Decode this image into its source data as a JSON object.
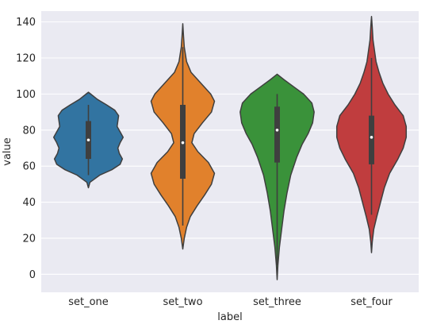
{
  "chart_data": {
    "type": "violin",
    "xlabel": "label",
    "ylabel": "value",
    "ylim": [
      -10,
      146
    ],
    "yticks": [
      0,
      20,
      40,
      60,
      80,
      100,
      120,
      140
    ],
    "categories": [
      "set_one",
      "set_two",
      "set_three",
      "set_four"
    ],
    "grid": true,
    "background": "#eaeaf2",
    "violins": [
      {
        "category": "set_one",
        "color": "#3274a1",
        "min": 55,
        "q1": 64,
        "median": 74.5,
        "q3": 85,
        "max": 94,
        "kde_min": 48,
        "kde_max": 101,
        "profile": [
          [
            48,
            0.0
          ],
          [
            51,
            0.04
          ],
          [
            55,
            0.3
          ],
          [
            58,
            0.62
          ],
          [
            61,
            0.84
          ],
          [
            64,
            0.9
          ],
          [
            67,
            0.82
          ],
          [
            70,
            0.78
          ],
          [
            73,
            0.84
          ],
          [
            76,
            0.92
          ],
          [
            79,
            0.84
          ],
          [
            82,
            0.76
          ],
          [
            85,
            0.78
          ],
          [
            88,
            0.8
          ],
          [
            91,
            0.7
          ],
          [
            94,
            0.48
          ],
          [
            97,
            0.24
          ],
          [
            100,
            0.06
          ],
          [
            101,
            0.0
          ]
        ]
      },
      {
        "category": "set_two",
        "color": "#e1812c",
        "min": 27,
        "q1": 53,
        "median": 73,
        "q3": 94,
        "max": 126,
        "kde_min": 14,
        "kde_max": 139,
        "profile": [
          [
            14,
            0.0
          ],
          [
            20,
            0.04
          ],
          [
            26,
            0.1
          ],
          [
            32,
            0.2
          ],
          [
            38,
            0.38
          ],
          [
            44,
            0.58
          ],
          [
            50,
            0.76
          ],
          [
            56,
            0.84
          ],
          [
            62,
            0.68
          ],
          [
            68,
            0.4
          ],
          [
            73,
            0.24
          ],
          [
            78,
            0.3
          ],
          [
            84,
            0.52
          ],
          [
            90,
            0.76
          ],
          [
            96,
            0.84
          ],
          [
            100,
            0.74
          ],
          [
            106,
            0.48
          ],
          [
            112,
            0.22
          ],
          [
            118,
            0.1
          ],
          [
            126,
            0.04
          ],
          [
            132,
            0.02
          ],
          [
            139,
            0.0
          ]
        ]
      },
      {
        "category": "set_three",
        "color": "#3a923a",
        "min": 5,
        "q1": 62,
        "median": 80,
        "q3": 93,
        "max": 100,
        "kde_min": -3,
        "kde_max": 111,
        "profile": [
          [
            -3,
            0.0
          ],
          [
            5,
            0.02
          ],
          [
            15,
            0.06
          ],
          [
            25,
            0.12
          ],
          [
            35,
            0.18
          ],
          [
            45,
            0.26
          ],
          [
            55,
            0.36
          ],
          [
            65,
            0.52
          ],
          [
            72,
            0.66
          ],
          [
            78,
            0.82
          ],
          [
            84,
            0.94
          ],
          [
            90,
            0.98
          ],
          [
            95,
            0.92
          ],
          [
            100,
            0.7
          ],
          [
            104,
            0.44
          ],
          [
            108,
            0.18
          ],
          [
            111,
            0.0
          ]
        ]
      },
      {
        "category": "set_four",
        "color": "#c03d3e",
        "min": 33,
        "q1": 61,
        "median": 76,
        "q3": 88,
        "max": 120,
        "kde_min": 12,
        "kde_max": 143,
        "profile": [
          [
            12,
            0.0
          ],
          [
            18,
            0.02
          ],
          [
            25,
            0.06
          ],
          [
            32,
            0.14
          ],
          [
            40,
            0.24
          ],
          [
            48,
            0.34
          ],
          [
            56,
            0.48
          ],
          [
            64,
            0.7
          ],
          [
            70,
            0.84
          ],
          [
            76,
            0.92
          ],
          [
            82,
            0.92
          ],
          [
            88,
            0.84
          ],
          [
            94,
            0.62
          ],
          [
            100,
            0.44
          ],
          [
            106,
            0.3
          ],
          [
            112,
            0.2
          ],
          [
            118,
            0.12
          ],
          [
            124,
            0.08
          ],
          [
            130,
            0.04
          ],
          [
            137,
            0.02
          ],
          [
            143,
            0.0
          ]
        ]
      }
    ]
  }
}
